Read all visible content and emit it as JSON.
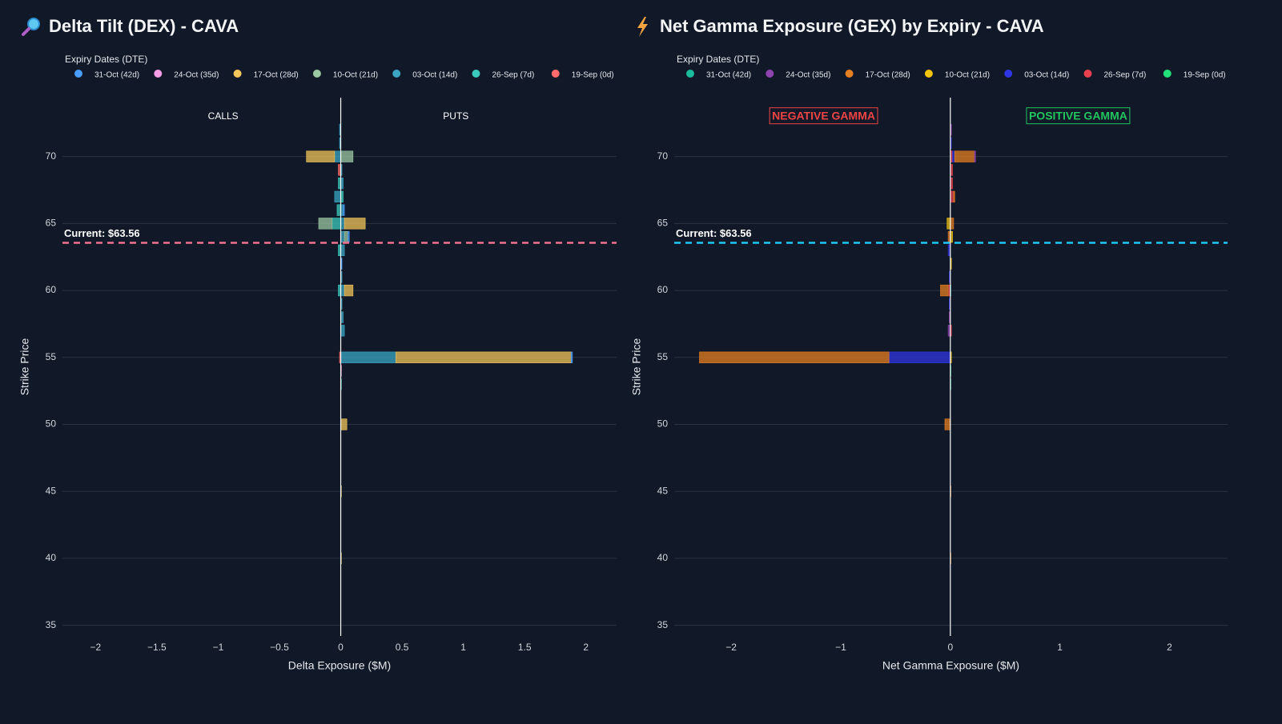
{
  "chart_data": [
    {
      "type": "bar",
      "orientation": "h",
      "barmode": "relative",
      "title": "Delta Tilt (DEX) - CAVA",
      "legend_title": "Expiry Dates (DTE)",
      "xlabel": "Delta Exposure ($M)",
      "ylabel": "Strike Price",
      "y": [
        40,
        45,
        50,
        53,
        54,
        55,
        57,
        58,
        59,
        60,
        61,
        62,
        63,
        64,
        65,
        66,
        67,
        68,
        69,
        70,
        71,
        72
      ],
      "series": [
        {
          "name": "31-Oct (42d)",
          "color": "#4a9eff",
          "values": [
            0,
            0,
            0,
            0,
            0,
            0.01,
            0,
            0,
            0,
            0,
            0,
            0.005,
            0,
            0.01,
            0,
            0.01,
            0,
            0,
            0,
            0,
            0,
            0
          ]
        },
        {
          "name": "24-Oct (35d)",
          "color": "#f59ee6",
          "values": [
            0,
            0,
            0,
            0,
            0.005,
            0,
            0,
            0,
            0,
            0,
            0,
            0,
            0,
            0,
            0,
            0,
            0,
            0,
            0,
            0,
            0,
            0
          ]
        },
        {
          "name": "17-Oct (28d)",
          "color": "#f2c45a",
          "values": [
            0.005,
            0.005,
            0.05,
            0,
            0,
            1.43,
            0,
            0,
            0,
            0.07,
            0,
            0,
            0,
            0,
            0.17,
            0,
            0,
            0,
            0,
            -0.23,
            0,
            0
          ]
        },
        {
          "name": "10-Oct (21d)",
          "color": "#9cc7a4",
          "values": [
            0,
            0,
            0,
            0,
            0,
            0,
            0,
            0,
            0,
            0,
            0,
            0,
            0,
            0.03,
            -0.11,
            0,
            0,
            0,
            0,
            0.1,
            0,
            0
          ]
        },
        {
          "name": "03-Oct (14d)",
          "color": "#3aa6c4",
          "values": [
            0,
            0,
            0,
            0,
            0,
            0.45,
            0.03,
            0.02,
            0.01,
            0.03,
            0.01,
            0,
            0.03,
            0.03,
            0.03,
            0.02,
            -0.05,
            0.02,
            0.01,
            -0.05,
            -0.01,
            -0.01
          ]
        },
        {
          "name": "26-Sep (7d)",
          "color": "#3cc9bd",
          "values": [
            0,
            0,
            0,
            0.005,
            0,
            0,
            0,
            0,
            0,
            -0.02,
            0,
            0.005,
            -0.02,
            0,
            -0.07,
            -0.03,
            0.02,
            -0.02,
            0,
            0,
            0,
            0
          ]
        },
        {
          "name": "19-Sep (0d)",
          "color": "#ff6b6b",
          "values": [
            0,
            0,
            0,
            0,
            0,
            -0.01,
            0,
            0,
            0,
            0,
            0,
            0,
            0,
            0,
            0,
            0,
            0,
            0,
            -0.02,
            0,
            0,
            0
          ]
        }
      ],
      "xlim": [
        -2.27,
        2.25
      ],
      "xticks": [
        {
          "value": -2,
          "label": "−2"
        },
        {
          "value": -1.5,
          "label": "−1.5"
        },
        {
          "value": -1,
          "label": "−1"
        },
        {
          "value": -0.5,
          "label": "−0.5"
        },
        0,
        0.5,
        1,
        1.5,
        2
      ],
      "ylim": [
        34.2,
        74.4
      ],
      "yticks": [
        35,
        40,
        45,
        50,
        55,
        60,
        65,
        70
      ],
      "grid": true,
      "current_price": 63.56,
      "current_label": "Current: $63.56",
      "current_color": "#f0708f",
      "annotations": [
        {
          "text": "CALLS",
          "color": "#ffffff",
          "box": false
        },
        {
          "text": "PUTS",
          "color": "#ffffff",
          "box": false
        }
      ]
    },
    {
      "type": "bar",
      "orientation": "h",
      "barmode": "relative",
      "title": "Net Gamma Exposure (GEX) by Expiry - CAVA",
      "legend_title": "Expiry Dates (DTE)",
      "xlabel": "Net Gamma Exposure ($M)",
      "ylabel": "Strike Price",
      "y": [
        40,
        45,
        50,
        53,
        54,
        55,
        57,
        58,
        59,
        60,
        61,
        62,
        63,
        64,
        65,
        66,
        67,
        68,
        69,
        70,
        71,
        72
      ],
      "series": [
        {
          "name": "31-Oct (42d)",
          "color": "#1abc9c",
          "values": [
            0,
            0,
            0,
            0.005,
            0,
            0,
            0,
            0,
            0,
            0.005,
            0,
            0,
            0,
            0,
            0,
            0,
            0,
            0,
            0,
            0,
            0,
            0
          ]
        },
        {
          "name": "24-Oct (35d)",
          "color": "#8e44ad",
          "values": [
            0,
            0,
            0,
            0,
            0,
            0,
            -0.02,
            -0.01,
            0,
            0,
            0,
            0,
            0,
            0,
            0,
            0,
            0,
            0,
            0,
            0.01,
            0,
            0.01
          ]
        },
        {
          "name": "17-Oct (28d)",
          "color": "#e67e22",
          "values": [
            0.005,
            0.005,
            -0.05,
            0,
            0,
            -1.73,
            0,
            0,
            0,
            -0.07,
            0,
            0,
            0,
            -0.02,
            0.03,
            0,
            0.01,
            0,
            0,
            0.18,
            0,
            0
          ]
        },
        {
          "name": "10-Oct (21d)",
          "color": "#f1c40f",
          "values": [
            0,
            0,
            0,
            0,
            0,
            0.01,
            0,
            0,
            0,
            0,
            0,
            0.01,
            0,
            0.02,
            -0.03,
            0,
            0,
            0,
            0,
            0,
            0,
            0
          ]
        },
        {
          "name": "03-Oct (14d)",
          "color": "#2f35e0",
          "values": [
            0,
            0,
            0,
            0,
            0,
            -0.56,
            0,
            0,
            -0.01,
            0,
            -0.01,
            0,
            -0.02,
            0,
            0,
            0,
            0,
            0,
            0,
            0.02,
            0.01,
            0
          ]
        },
        {
          "name": "26-Sep (7d)",
          "color": "#e8404f",
          "values": [
            0,
            0,
            0,
            0,
            0,
            0,
            0.01,
            0,
            0,
            -0.02,
            0,
            0,
            0,
            0,
            0,
            0,
            0.03,
            0.02,
            0.02,
            0.02,
            0,
            0
          ]
        },
        {
          "name": "19-Sep (0d)",
          "color": "#22e07a",
          "values": [
            0,
            0,
            0,
            0,
            0.005,
            0,
            0,
            0,
            0,
            0,
            0,
            0,
            0,
            0,
            0,
            0,
            0,
            0,
            0,
            0,
            0,
            0
          ]
        }
      ],
      "xlim": [
        -2.52,
        2.53
      ],
      "xticks": [
        {
          "value": -2,
          "label": "−2"
        },
        {
          "value": -1,
          "label": "−1"
        },
        0,
        1,
        2
      ],
      "ylim": [
        34.2,
        74.4
      ],
      "yticks": [
        35,
        40,
        45,
        50,
        55,
        60,
        65,
        70
      ],
      "grid": true,
      "current_price": 63.56,
      "current_label": "Current: $63.56",
      "current_color": "#1ec8f5",
      "annotations": [
        {
          "text": "NEGATIVE GAMMA",
          "color": "#ef4444",
          "box": true
        },
        {
          "text": "POSITIVE GAMMA",
          "color": "#22c55e",
          "box": true
        }
      ]
    }
  ]
}
